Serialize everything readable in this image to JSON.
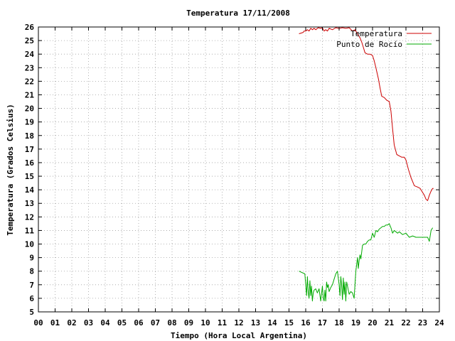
{
  "chart_data": {
    "type": "line",
    "title": "Temperatura 17/11/2008",
    "xlabel": "Tiempo (Hora Local Argentina)",
    "ylabel": "Temperatura (Grados Celsius)",
    "xlim": [
      0,
      24
    ],
    "ylim": [
      5,
      26
    ],
    "x_tick_labels": [
      "00",
      "01",
      "02",
      "03",
      "04",
      "05",
      "06",
      "07",
      "08",
      "09",
      "10",
      "11",
      "12",
      "13",
      "14",
      "15",
      "16",
      "17",
      "18",
      "19",
      "20",
      "21",
      "22",
      "23",
      "24"
    ],
    "y_tick_labels": [
      "5",
      "6",
      "7",
      "8",
      "9",
      "10",
      "11",
      "12",
      "13",
      "14",
      "15",
      "16",
      "17",
      "18",
      "19",
      "20",
      "21",
      "22",
      "23",
      "24",
      "25",
      "26"
    ],
    "grid": true,
    "legend_position": "top-right",
    "series": [
      {
        "name": "Temperatura",
        "color": "#cc0000",
        "x": [
          15.6,
          15.85,
          15.9,
          16.0,
          16.1,
          16.2,
          16.3,
          16.4,
          16.5,
          16.6,
          16.75,
          16.9,
          17.0,
          17.1,
          17.2,
          17.3,
          17.4,
          17.6,
          17.8,
          18.0,
          18.2,
          18.4,
          18.6,
          18.8,
          18.95,
          19.05,
          19.15,
          19.25,
          19.35,
          19.45,
          19.55,
          19.7,
          19.85,
          20.0,
          20.1,
          20.2,
          20.35,
          20.45,
          20.55,
          20.7,
          20.85,
          21.0,
          21.1,
          21.2,
          21.3,
          21.45,
          21.6,
          21.75,
          21.9,
          22.0,
          22.15,
          22.3,
          22.5,
          22.7,
          22.85,
          23.0,
          23.1,
          23.2,
          23.3,
          23.4,
          23.5,
          23.55,
          23.6,
          23.65
        ],
        "y": [
          25.5,
          25.6,
          25.7,
          25.7,
          25.8,
          25.7,
          25.9,
          25.8,
          25.9,
          25.8,
          25.95,
          25.9,
          25.95,
          25.7,
          25.8,
          25.7,
          25.9,
          25.8,
          25.95,
          25.9,
          25.95,
          25.9,
          25.95,
          25.7,
          25.8,
          25.6,
          25.4,
          25.2,
          24.9,
          24.5,
          24.1,
          24.0,
          24.0,
          23.9,
          23.5,
          23.0,
          22.2,
          21.5,
          20.9,
          20.8,
          20.6,
          20.5,
          19.8,
          18.5,
          17.3,
          16.6,
          16.5,
          16.4,
          16.4,
          16.2,
          15.5,
          14.9,
          14.3,
          14.2,
          14.1,
          13.8,
          13.6,
          13.3,
          13.2,
          13.6,
          13.9,
          14.0,
          14.1,
          14.1
        ]
      },
      {
        "name": "Punto de Rocío",
        "color": "#00aa00",
        "x": [
          15.6,
          15.95,
          16.05,
          16.1,
          16.15,
          16.2,
          16.25,
          16.3,
          16.35,
          16.4,
          16.45,
          16.5,
          16.6,
          16.7,
          16.8,
          16.9,
          17.0,
          17.05,
          17.1,
          17.15,
          17.2,
          17.25,
          17.3,
          17.35,
          17.4,
          17.5,
          17.6,
          17.7,
          17.8,
          17.9,
          18.0,
          18.05,
          18.1,
          18.15,
          18.2,
          18.25,
          18.3,
          18.35,
          18.4,
          18.45,
          18.5,
          18.6,
          18.7,
          18.8,
          18.9,
          19.0,
          19.05,
          19.1,
          19.15,
          19.2,
          19.25,
          19.3,
          19.4,
          19.5,
          19.6,
          19.7,
          19.8,
          19.9,
          20.0,
          20.1,
          20.2,
          20.3,
          20.4,
          20.5,
          20.6,
          20.7,
          20.8,
          20.9,
          21.0,
          21.1,
          21.2,
          21.3,
          21.4,
          21.5,
          21.6,
          21.7,
          21.8,
          22.0,
          22.2,
          22.4,
          22.6,
          22.8,
          23.0,
          23.2,
          23.3,
          23.4,
          23.5,
          23.6
        ],
        "y": [
          8.0,
          7.8,
          6.2,
          7.6,
          6.5,
          6.0,
          7.3,
          6.2,
          6.9,
          5.8,
          6.4,
          6.6,
          6.7,
          6.4,
          6.7,
          5.8,
          6.9,
          6.0,
          5.8,
          6.6,
          5.8,
          7.2,
          6.8,
          7.0,
          6.5,
          6.8,
          7.0,
          7.4,
          7.8,
          8.0,
          7.0,
          6.2,
          7.6,
          7.0,
          5.9,
          7.5,
          6.3,
          7.2,
          5.8,
          7.2,
          6.9,
          6.3,
          6.5,
          6.4,
          6.0,
          8.0,
          8.5,
          9.0,
          8.2,
          8.8,
          9.2,
          8.9,
          9.9,
          10.0,
          10.0,
          10.2,
          10.3,
          10.3,
          10.8,
          10.5,
          11.0,
          10.9,
          11.1,
          11.2,
          11.3,
          11.3,
          11.4,
          11.4,
          11.5,
          11.2,
          10.8,
          11.0,
          10.9,
          10.8,
          10.9,
          10.8,
          10.7,
          10.8,
          10.5,
          10.6,
          10.5,
          10.5,
          10.5,
          10.5,
          10.5,
          10.2,
          11.0,
          11.2
        ]
      }
    ]
  }
}
